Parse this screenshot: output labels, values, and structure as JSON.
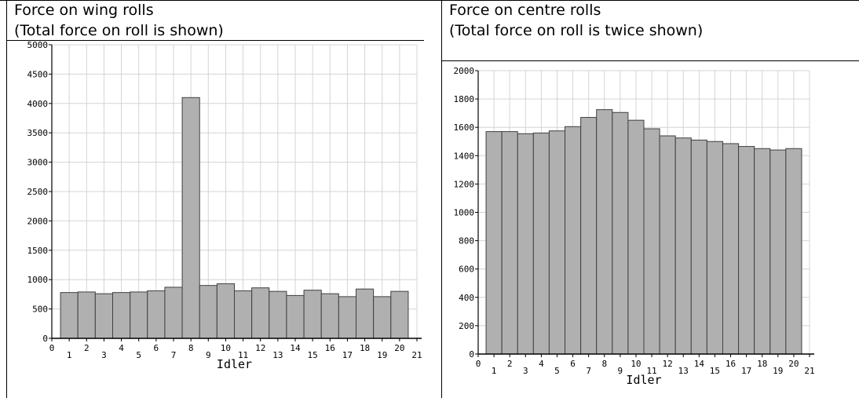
{
  "panels": [
    {
      "title_line1": "Force on wing rolls",
      "title_line2": "(Total force on roll is shown)"
    },
    {
      "title_line1": "Force on centre rolls",
      "title_line2": "(Total force on roll is twice shown)"
    }
  ],
  "chart_data": [
    {
      "type": "bar",
      "title": "Force on wing rolls",
      "xlabel": "Idler",
      "ylabel": "",
      "xlim": [
        0,
        21
      ],
      "ylim": [
        0,
        5000
      ],
      "ytick_step": 500,
      "xticks": [
        0,
        1,
        2,
        3,
        4,
        5,
        6,
        7,
        8,
        9,
        10,
        11,
        12,
        13,
        14,
        15,
        16,
        17,
        18,
        19,
        20,
        21
      ],
      "grid": true,
      "bar_color": "#b0b0b0",
      "categories": [
        1,
        2,
        3,
        4,
        5,
        6,
        7,
        8,
        9,
        10,
        11,
        12,
        13,
        14,
        15,
        16,
        17,
        18,
        19,
        20
      ],
      "values": [
        780,
        790,
        760,
        780,
        790,
        810,
        870,
        4100,
        900,
        930,
        810,
        860,
        800,
        730,
        820,
        760,
        710,
        840,
        710,
        800
      ]
    },
    {
      "type": "bar",
      "title": "Force on centre rolls",
      "xlabel": "Idler",
      "ylabel": "",
      "xlim": [
        0,
        21
      ],
      "ylim": [
        0,
        2000
      ],
      "ytick_step": 200,
      "xticks": [
        0,
        1,
        2,
        3,
        4,
        5,
        6,
        7,
        8,
        9,
        10,
        11,
        12,
        13,
        14,
        15,
        16,
        17,
        18,
        19,
        20,
        21
      ],
      "grid": true,
      "bar_color": "#b0b0b0",
      "categories": [
        1,
        2,
        3,
        4,
        5,
        6,
        7,
        8,
        9,
        10,
        11,
        12,
        13,
        14,
        15,
        16,
        17,
        18,
        19,
        20
      ],
      "values": [
        1570,
        1570,
        1555,
        1560,
        1575,
        1605,
        1670,
        1725,
        1705,
        1650,
        1590,
        1540,
        1525,
        1510,
        1500,
        1485,
        1465,
        1450,
        1440,
        1450
      ]
    }
  ]
}
